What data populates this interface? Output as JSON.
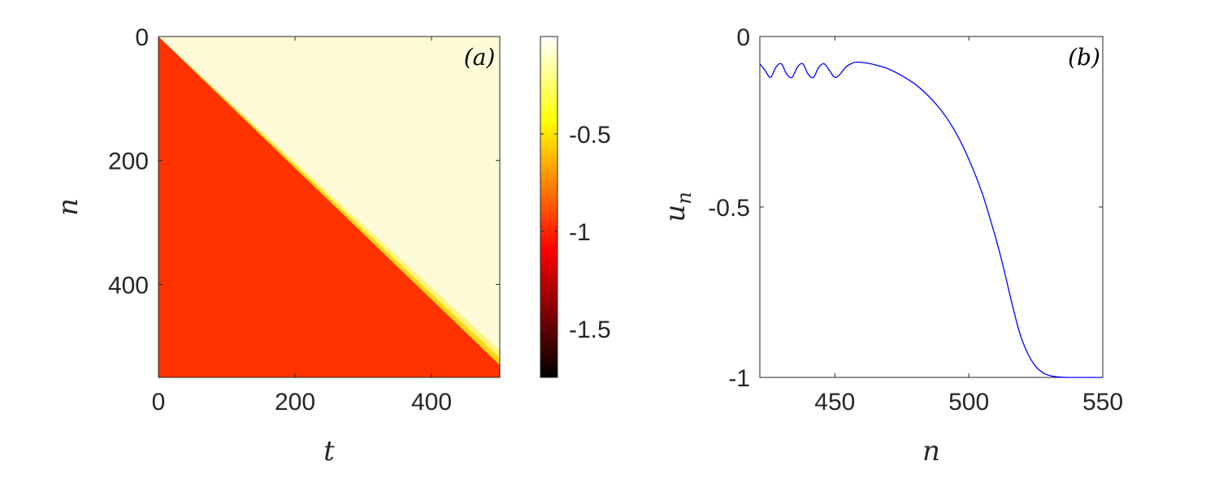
{
  "chart_data": [
    {
      "type": "heatmap",
      "panel_label": "(a)",
      "xlabel": "t",
      "ylabel": "n",
      "xlim": [
        0,
        500
      ],
      "ylim": [
        0,
        550
      ],
      "y_reversed": true,
      "xticks": [
        0,
        200,
        400
      ],
      "yticks": [
        0,
        200,
        400
      ],
      "front": {
        "n_at_t0": 0,
        "n_at_t500": 530,
        "transition_width_n": 12
      },
      "values": {
        "behind_front": -0.95,
        "ahead_of_front": -0.08
      },
      "colorbar": {
        "colormap": "hot",
        "range": [
          -1.75,
          0
        ],
        "ticks": [
          -1.5,
          -1,
          -0.5
        ],
        "tick_labels": [
          "-1.5",
          "-1",
          "-0.5"
        ]
      },
      "colors": {
        "behind": "#ff3300",
        "ahead": "#fdfbd7"
      }
    },
    {
      "type": "line",
      "panel_label": "(b)",
      "xlabel": "n",
      "ylabel": "u_n",
      "xlim": [
        422,
        550
      ],
      "ylim": [
        -1,
        0
      ],
      "xticks": [
        450,
        500,
        550
      ],
      "yticks": [
        0,
        -0.5,
        -1
      ],
      "ytick_labels": [
        "0",
        "-0.5",
        "-1"
      ],
      "line_color": "#0000ff",
      "series": [
        {
          "x": [
            422,
            424,
            426,
            428,
            430,
            432,
            434,
            436,
            438,
            440,
            442,
            444,
            446,
            448,
            450,
            452,
            454,
            456,
            458,
            462,
            466,
            470,
            475,
            480,
            485,
            490,
            495,
            500,
            505,
            510,
            513,
            516,
            519,
            522,
            525,
            528,
            531,
            534,
            537,
            540,
            545,
            550
          ],
          "y": [
            -0.08,
            -0.1,
            -0.12,
            -0.09,
            -0.08,
            -0.11,
            -0.12,
            -0.09,
            -0.08,
            -0.11,
            -0.12,
            -0.09,
            -0.08,
            -0.1,
            -0.12,
            -0.11,
            -0.09,
            -0.08,
            -0.075,
            -0.078,
            -0.085,
            -0.095,
            -0.115,
            -0.14,
            -0.175,
            -0.22,
            -0.28,
            -0.36,
            -0.46,
            -0.59,
            -0.68,
            -0.78,
            -0.87,
            -0.93,
            -0.968,
            -0.988,
            -0.996,
            -0.999,
            -1,
            -1,
            -1,
            -1
          ]
        }
      ]
    }
  ]
}
